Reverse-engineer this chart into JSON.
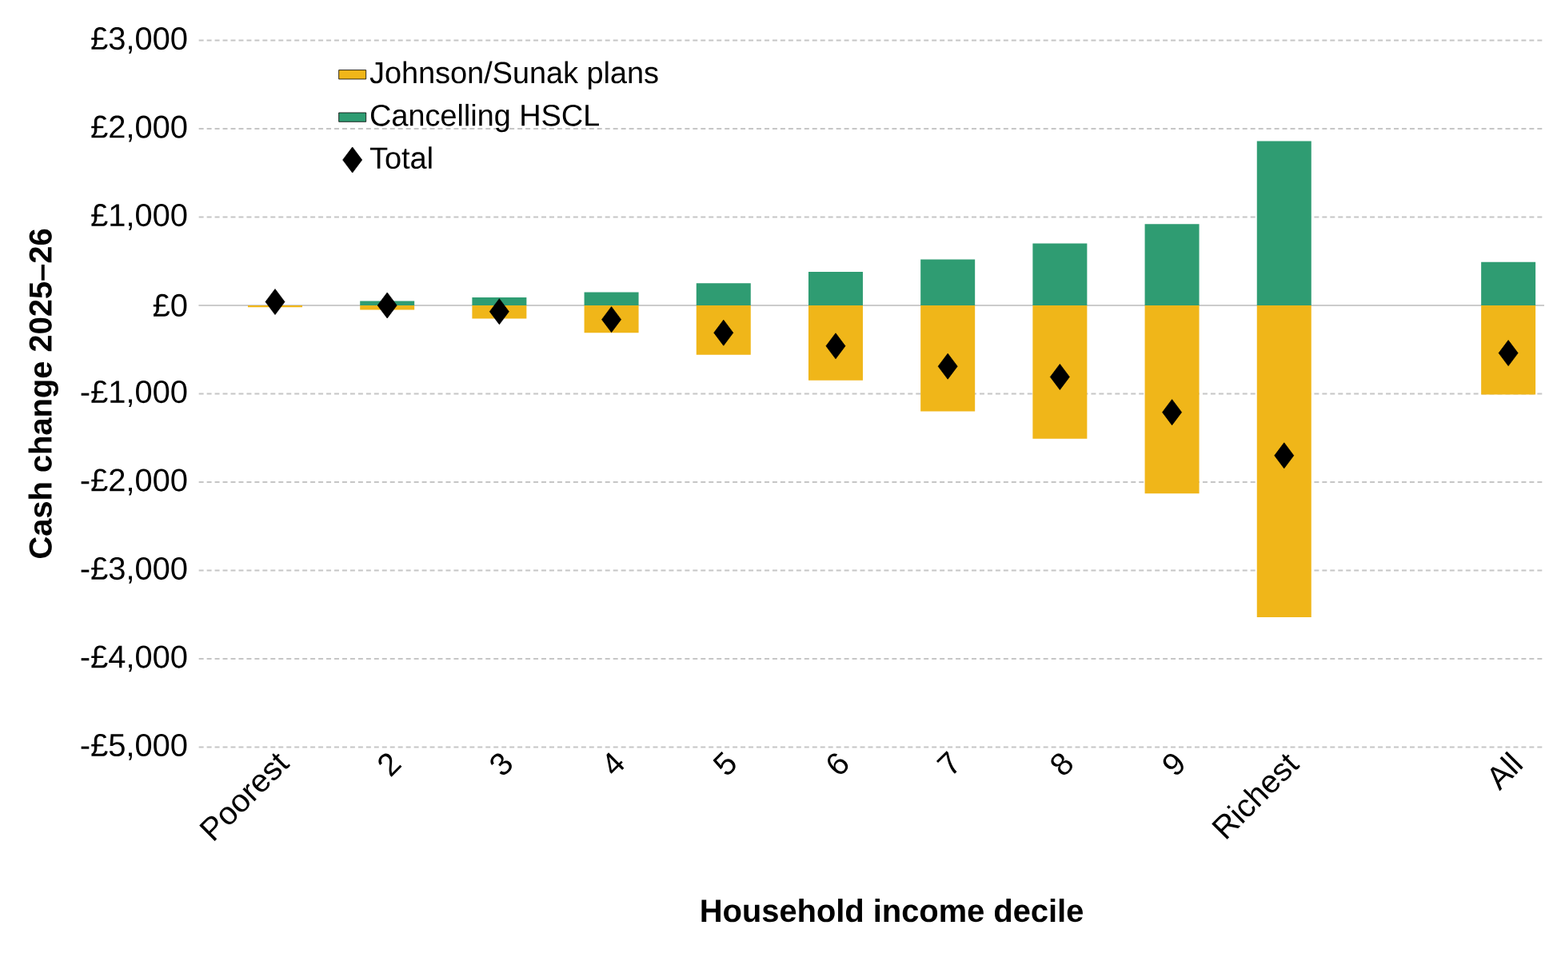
{
  "chart_data": {
    "type": "bar",
    "stacked": true,
    "xlabel": "Household income decile",
    "ylabel": "Cash change 2025–26",
    "categories": [
      "Poorest",
      "2",
      "3",
      "4",
      "5",
      "6",
      "7",
      "8",
      "9",
      "Richest",
      null,
      "All"
    ],
    "series": [
      {
        "name": "Johnson/Sunak plans",
        "color": "#f0b619",
        "values": [
          -20,
          -50,
          -150,
          -310,
          -560,
          -850,
          -1200,
          -1510,
          -2130,
          -3530,
          null,
          -1010
        ]
      },
      {
        "name": "Cancelling HSCL",
        "color": "#2f9c72",
        "values": [
          null,
          50,
          90,
          150,
          250,
          380,
          520,
          700,
          920,
          1860,
          null,
          490
        ]
      },
      {
        "name": "Total",
        "type": "scatter",
        "marker": "diamond",
        "color": "#000000",
        "x": [
          "Poorest",
          "2",
          "3",
          "4",
          "5",
          "6",
          "7",
          "8",
          "9",
          "Richest",
          "All"
        ],
        "values": [
          40,
          0,
          -70,
          -160,
          -310,
          -460,
          -690,
          -810,
          -1210,
          -1700,
          -540
        ]
      }
    ],
    "ylim": [
      -5000,
      3000
    ],
    "yticks": [
      {
        "value": -5000,
        "label": "-£5,000"
      },
      {
        "value": -4000,
        "label": "-£4,000"
      },
      {
        "value": -3000,
        "label": "-£3,000"
      },
      {
        "value": -2000,
        "label": "-£2,000"
      },
      {
        "value": -1000,
        "label": "-£1,000"
      },
      {
        "value": 0,
        "label": "£0"
      },
      {
        "value": 1000,
        "label": "£1,000"
      },
      {
        "value": 2000,
        "label": "£2,000"
      },
      {
        "value": 3000,
        "label": "£3,000"
      }
    ],
    "grid": "y",
    "legend": "top left"
  }
}
